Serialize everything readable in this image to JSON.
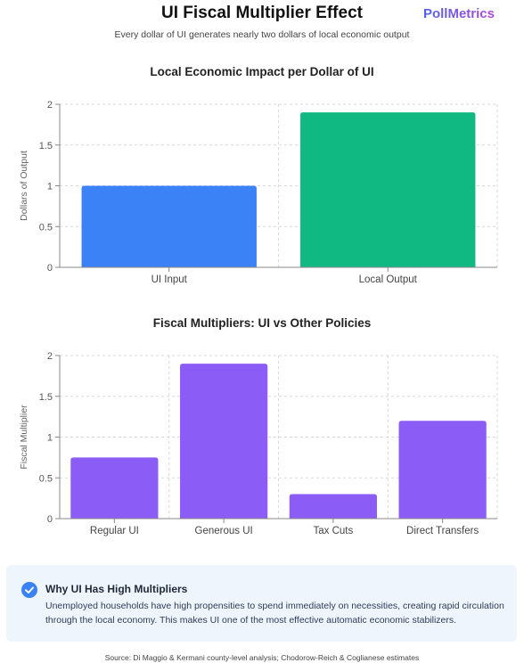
{
  "header": {
    "title": "UI Fiscal Multiplier Effect",
    "brand": "PollMetrics",
    "subtitle": "Every dollar of UI generates nearly two dollars of local economic output"
  },
  "chart_data": [
    {
      "type": "bar",
      "title": "Local Economic Impact per Dollar of UI",
      "xlabel": "",
      "ylabel": "Dollars of Output",
      "categories": [
        "UI Input",
        "Local Output"
      ],
      "values": [
        1.0,
        1.9
      ],
      "colors": [
        "#3b82f6",
        "#10b981"
      ],
      "ylim": [
        0,
        2
      ],
      "yticks": [
        "0",
        "0.5",
        "1",
        "1.5",
        "2"
      ],
      "grid": true
    },
    {
      "type": "bar",
      "title": "Fiscal Multipliers: UI vs Other Policies",
      "xlabel": "",
      "ylabel": "Fiscal Multiplier",
      "categories": [
        "Regular UI",
        "Generous UI",
        "Tax Cuts",
        "Direct Transfers"
      ],
      "values": [
        0.75,
        1.9,
        0.3,
        1.2
      ],
      "colors": [
        "#8b5cf6",
        "#8b5cf6",
        "#8b5cf6",
        "#8b5cf6"
      ],
      "ylim": [
        0,
        2
      ],
      "yticks": [
        "0",
        "0.5",
        "1",
        "1.5",
        "2"
      ],
      "grid": true
    }
  ],
  "callout": {
    "icon": "check-circle-icon",
    "title": "Why UI Has High Multipliers",
    "body": "Unemployed households have high propensities to spend immediately on necessities, creating rapid circulation through the local economy. This makes UI one of the most effective automatic economic stabilizers."
  },
  "footer": {
    "source": "Source: Di Maggio & Kermani county-level analysis; Chodorow-Reich & Coglianese estimates"
  }
}
